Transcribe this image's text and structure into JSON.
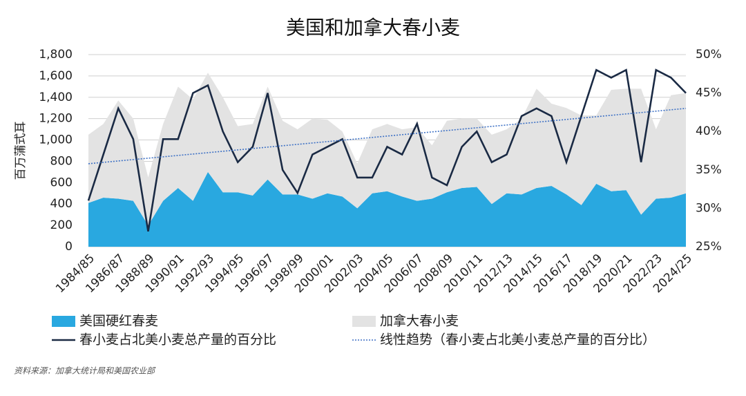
{
  "chart_data": {
    "type": "stacked-area-line",
    "title": "美国和加拿大春小麦",
    "ylabel": "百万蒲式耳",
    "source": "资料来源：加拿大统计局和美国农业部",
    "categories": [
      "1984/85",
      null,
      "1986/87",
      null,
      "1988/89",
      null,
      "1990/91",
      null,
      "1992/93",
      null,
      "1994/95",
      null,
      "1996/97",
      null,
      "1998/99",
      null,
      "2000/01",
      null,
      "2002/03",
      null,
      "2004/05",
      null,
      "2006/07",
      null,
      "2008/09",
      null,
      "2010/11",
      null,
      "2012/13",
      null,
      "2014/15",
      null,
      "2016/17",
      null,
      "2018/19",
      null,
      "2020/21",
      null,
      "2022/23",
      null,
      "2024/25"
    ],
    "ylim": [
      0,
      1800
    ],
    "yticks": [
      0,
      200,
      400,
      600,
      800,
      {
        "value": 1000,
        "label": "1,000"
      },
      {
        "value": 1200,
        "label": "1,200"
      },
      {
        "value": 1400,
        "label": "1,400"
      },
      {
        "value": 1600,
        "label": "1,600"
      },
      {
        "value": 1800,
        "label": "1,800"
      }
    ],
    "y2lim": [
      25,
      50
    ],
    "y2ticks": [
      {
        "value": 25,
        "label": "25%"
      },
      {
        "value": 30,
        "label": "30%"
      },
      {
        "value": 35,
        "label": "35%"
      },
      {
        "value": 40,
        "label": "40%"
      },
      {
        "value": 45,
        "label": "45%"
      },
      {
        "value": 50,
        "label": "50%"
      }
    ],
    "grid": true,
    "series": [
      {
        "name": "美国硬红春麦",
        "kind": "area",
        "color": "#29a8e0",
        "values": [
          410,
          460,
          450,
          430,
          200,
          430,
          550,
          430,
          700,
          510,
          510,
          480,
          630,
          490,
          490,
          450,
          500,
          470,
          360,
          500,
          520,
          470,
          430,
          450,
          510,
          550,
          560,
          400,
          500,
          490,
          550,
          570,
          490,
          390,
          590,
          520,
          530,
          300,
          450,
          460,
          500
        ]
      },
      {
        "name": "加拿大春小麦",
        "kind": "area",
        "color": "#e3e3e3",
        "values": [
          640,
          690,
          920,
          770,
          450,
          720,
          950,
          950,
          930,
          890,
          620,
          670,
          870,
          690,
          610,
          750,
          690,
          610,
          420,
          600,
          630,
          630,
          690,
          500,
          670,
          650,
          640,
          650,
          600,
          710,
          930,
          770,
          810,
          840,
          640,
          950,
          950,
          1180,
          650,
          960,
          940
        ]
      },
      {
        "name": "春小麦占北美小麦总产量的百分比",
        "kind": "line",
        "axis": "y2",
        "color": "#1a2a44",
        "values": [
          31,
          37,
          43,
          39,
          27,
          39,
          39,
          45,
          46,
          40,
          36,
          38,
          45,
          35,
          32,
          37,
          38,
          39,
          34,
          34,
          38,
          37,
          41,
          34,
          33,
          38,
          40,
          36,
          37,
          42,
          43,
          42,
          36,
          42,
          48,
          47,
          48,
          36,
          48,
          47,
          45
        ]
      },
      {
        "name": "线性趋势（春小麦占北美小麦总产量的百分比）",
        "kind": "trend",
        "axis": "y2",
        "color": "#3b6fc4",
        "values": [
          35.8,
          35.98,
          36.16,
          36.34,
          36.52,
          36.7,
          36.88,
          37.06,
          37.24,
          37.42,
          37.6,
          37.78,
          37.96,
          38.14,
          38.32,
          38.5,
          38.68,
          38.86,
          39.04,
          39.22,
          39.4,
          39.58,
          39.76,
          39.94,
          40.12,
          40.3,
          40.48,
          40.66,
          40.84,
          41.02,
          41.2,
          41.38,
          41.56,
          41.74,
          41.92,
          42.1,
          42.28,
          42.46,
          42.64,
          42.82,
          43
        ]
      }
    ]
  }
}
